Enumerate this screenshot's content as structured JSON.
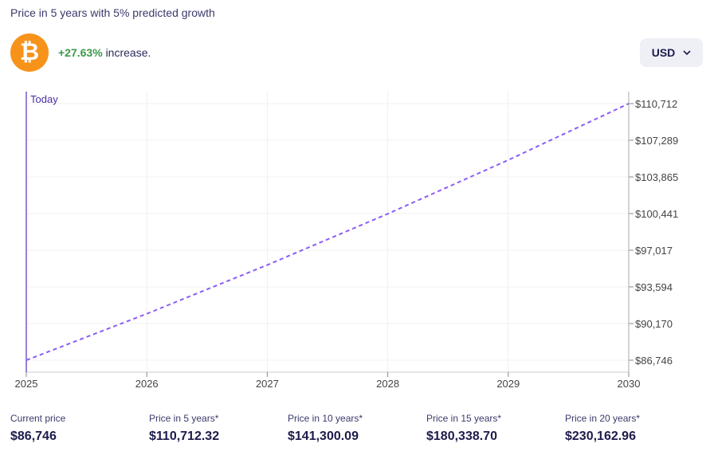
{
  "header": {
    "title": "Price in 5 years with 5% predicted growth",
    "coin_icon": "bitcoin-icon",
    "coin_symbol": "₿",
    "change": "+27.63%",
    "change_suffix": "increase.",
    "currency": "USD"
  },
  "colors": {
    "line": "#8b5cf6",
    "today": "#9b7fd6",
    "positive": "#3a9a4a",
    "coin": "#f7931a"
  },
  "chart_data": {
    "type": "line",
    "style": "dashed",
    "today_label": "Today",
    "x": [
      2025,
      2026,
      2027,
      2028,
      2029,
      2030
    ],
    "series": [
      {
        "values": [
          86746,
          91083,
          95637,
          100419,
          105440,
          110712
        ]
      }
    ],
    "y_ticks": [
      "$86,746",
      "$90,170",
      "$93,594",
      "$97,017",
      "$100,441",
      "$103,865",
      "$107,289",
      "$110,712"
    ],
    "y_tick_values": [
      86746,
      90170,
      93594,
      97017,
      100441,
      103865,
      107289,
      110712
    ],
    "ylim": [
      86746,
      110712
    ],
    "xlim": [
      2025,
      2030
    ],
    "grid": true,
    "y_axis": "right"
  },
  "stats": [
    {
      "label": "Current price",
      "value": "$86,746"
    },
    {
      "label": "Price in 5 years*",
      "value": "$110,712.32"
    },
    {
      "label": "Price in 10 years*",
      "value": "$141,300.09"
    },
    {
      "label": "Price in 15 years*",
      "value": "$180,338.70"
    },
    {
      "label": "Price in 20 years*",
      "value": "$230,162.96"
    }
  ]
}
